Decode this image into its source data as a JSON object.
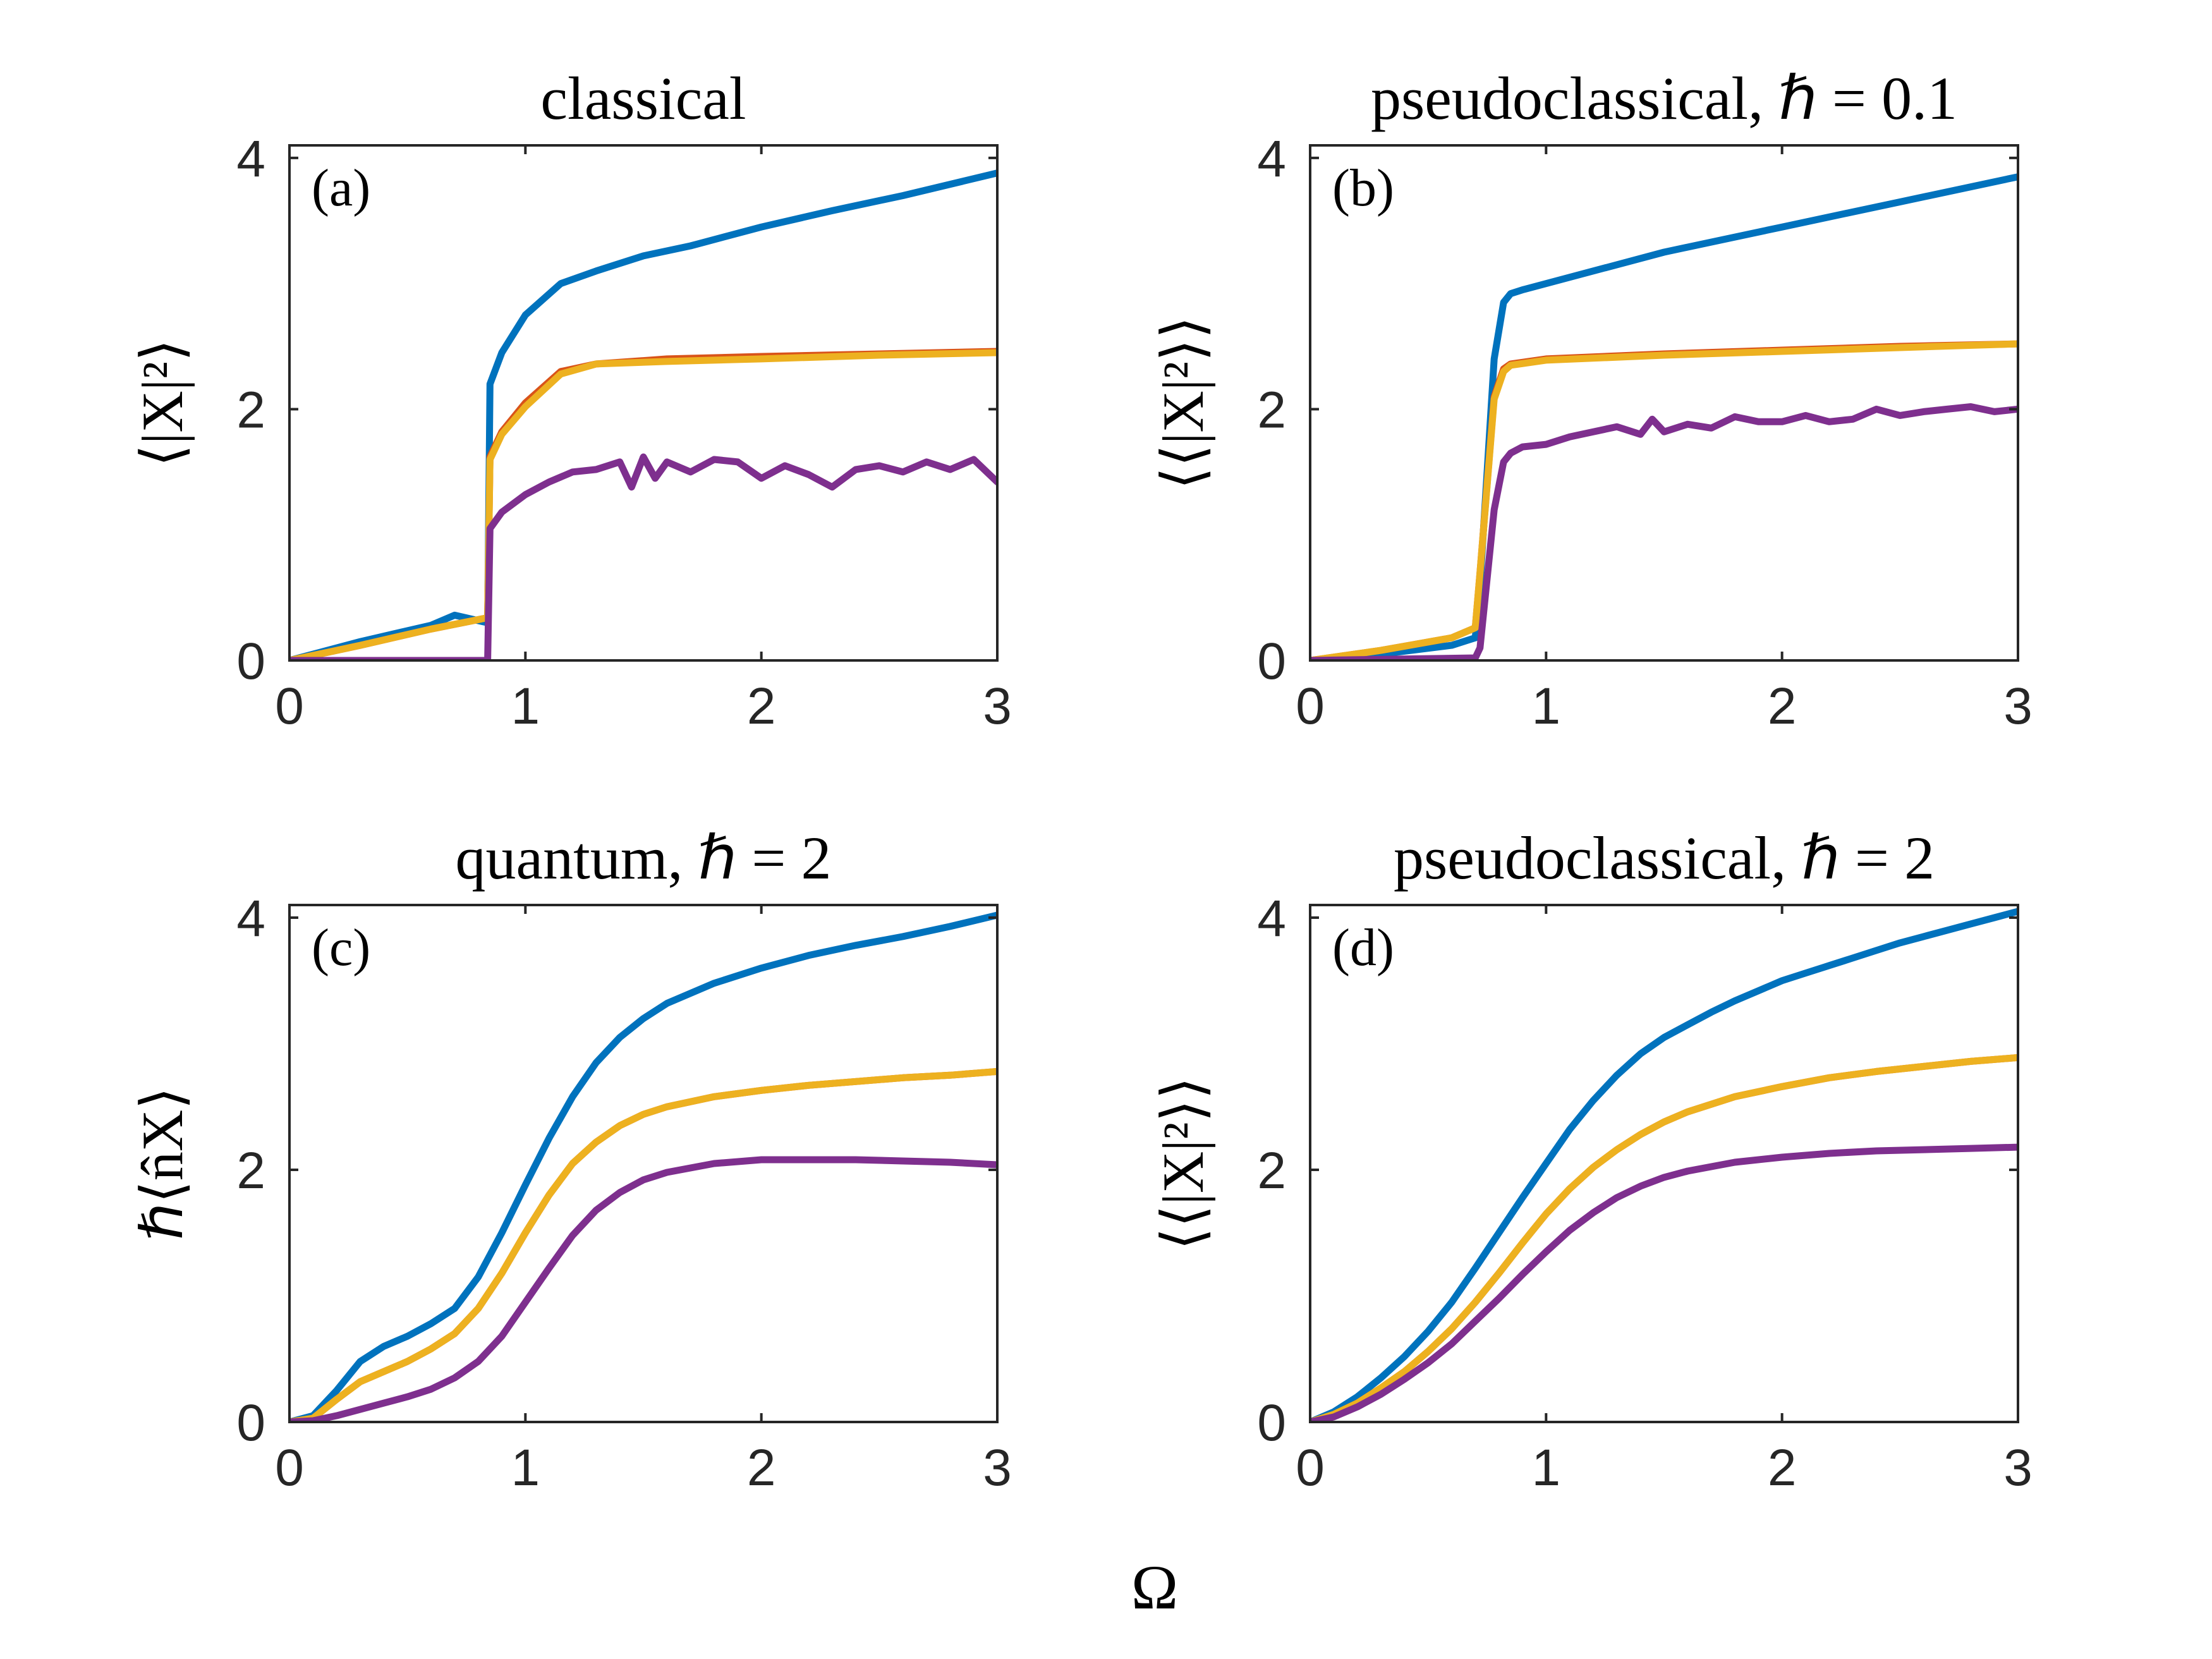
{
  "figure": {
    "shared_xlabel": "Ω"
  },
  "chart_data": [
    {
      "type": "line",
      "title": "classical",
      "panel_label": "(a)",
      "ylabel": "⟨|X|²⟩",
      "xlabel": "",
      "xlim": [
        0,
        3
      ],
      "ylim": [
        0,
        4.1
      ],
      "xticks": [
        "0",
        "1",
        "2",
        "3"
      ],
      "yticks": [
        "0",
        "2",
        "4"
      ],
      "series": [
        {
          "name": "blue",
          "color": "#0072BD",
          "x": [
            0,
            0.3,
            0.6,
            0.7,
            0.84,
            0.85,
            0.9,
            1.0,
            1.15,
            1.3,
            1.5,
            1.7,
            2.0,
            2.3,
            2.6,
            3.0
          ],
          "y": [
            0,
            0.15,
            0.28,
            0.36,
            0.3,
            2.2,
            2.45,
            2.75,
            3.0,
            3.1,
            3.22,
            3.3,
            3.45,
            3.58,
            3.7,
            3.88
          ]
        },
        {
          "name": "red",
          "color": "#D95319",
          "x": [
            0,
            0.3,
            0.6,
            0.84,
            0.85,
            0.9,
            1.0,
            1.15,
            1.3,
            1.6,
            2.0,
            2.5,
            3.0
          ],
          "y": [
            0,
            0.12,
            0.25,
            0.34,
            1.62,
            1.82,
            2.05,
            2.3,
            2.36,
            2.4,
            2.42,
            2.44,
            2.46
          ]
        },
        {
          "name": "yellow",
          "color": "#EDB120",
          "x": [
            0,
            0.3,
            0.6,
            0.84,
            0.85,
            0.9,
            1.0,
            1.15,
            1.3,
            1.6,
            2.0,
            2.5,
            3.0
          ],
          "y": [
            0,
            0.12,
            0.25,
            0.34,
            1.6,
            1.8,
            2.02,
            2.28,
            2.36,
            2.38,
            2.4,
            2.43,
            2.45
          ]
        },
        {
          "name": "purple",
          "color": "#7E2F8E",
          "x": [
            0,
            0.84,
            0.85,
            0.9,
            1.0,
            1.1,
            1.2,
            1.3,
            1.4,
            1.45,
            1.5,
            1.55,
            1.6,
            1.7,
            1.8,
            1.9,
            2.0,
            2.1,
            2.2,
            2.3,
            2.4,
            2.5,
            2.6,
            2.7,
            2.8,
            2.9,
            3.0
          ],
          "y": [
            0,
            0,
            1.05,
            1.18,
            1.32,
            1.42,
            1.5,
            1.52,
            1.58,
            1.38,
            1.62,
            1.45,
            1.58,
            1.5,
            1.6,
            1.58,
            1.45,
            1.55,
            1.48,
            1.38,
            1.52,
            1.55,
            1.5,
            1.58,
            1.52,
            1.6,
            1.42
          ]
        }
      ]
    },
    {
      "type": "line",
      "title": "pseudoclassical, ℏ = 0.1",
      "panel_label": "(b)",
      "ylabel": "⟨⟨|X|²⟩⟩",
      "xlabel": "",
      "xlim": [
        0,
        3
      ],
      "ylim": [
        0,
        4.1
      ],
      "xticks": [
        "0",
        "1",
        "2",
        "3"
      ],
      "yticks": [
        "0",
        "2",
        "4"
      ],
      "series": [
        {
          "name": "blue",
          "color": "#0072BD",
          "x": [
            0,
            0.3,
            0.6,
            0.7,
            0.72,
            0.78,
            0.82,
            0.85,
            0.9,
            1.0,
            1.5,
            2.0,
            2.5,
            3.0
          ],
          "y": [
            0,
            0.05,
            0.12,
            0.18,
            0.6,
            2.4,
            2.85,
            2.92,
            2.95,
            3.0,
            3.25,
            3.45,
            3.65,
            3.85
          ]
        },
        {
          "name": "red",
          "color": "#D95319",
          "x": [
            0,
            0.3,
            0.6,
            0.7,
            0.72,
            0.78,
            0.82,
            0.85,
            1.0,
            1.5,
            2.0,
            2.5,
            3.0
          ],
          "y": [
            0,
            0.08,
            0.18,
            0.26,
            0.7,
            2.1,
            2.32,
            2.36,
            2.4,
            2.44,
            2.47,
            2.5,
            2.52
          ]
        },
        {
          "name": "yellow",
          "color": "#EDB120",
          "x": [
            0,
            0.3,
            0.6,
            0.7,
            0.72,
            0.78,
            0.82,
            0.85,
            1.0,
            1.5,
            2.0,
            2.5,
            3.0
          ],
          "y": [
            0,
            0.08,
            0.18,
            0.26,
            0.7,
            2.08,
            2.3,
            2.35,
            2.39,
            2.43,
            2.46,
            2.49,
            2.52
          ]
        },
        {
          "name": "purple",
          "color": "#7E2F8E",
          "x": [
            0,
            0.7,
            0.72,
            0.78,
            0.82,
            0.85,
            0.9,
            1.0,
            1.1,
            1.2,
            1.3,
            1.4,
            1.45,
            1.5,
            1.6,
            1.7,
            1.8,
            1.9,
            2.0,
            2.1,
            2.2,
            2.3,
            2.4,
            2.5,
            2.6,
            2.7,
            2.8,
            2.9,
            3.0
          ],
          "y": [
            0,
            0.02,
            0.1,
            1.2,
            1.58,
            1.65,
            1.7,
            1.72,
            1.78,
            1.82,
            1.86,
            1.8,
            1.92,
            1.82,
            1.88,
            1.85,
            1.94,
            1.9,
            1.9,
            1.95,
            1.9,
            1.92,
            2.0,
            1.95,
            1.98,
            2.0,
            2.02,
            1.98,
            2.0
          ]
        }
      ]
    },
    {
      "type": "line",
      "title": "quantum, ℏ = 2",
      "panel_label": "(c)",
      "ylabel": "ℏ⟨n̂X⟩",
      "xlabel": "",
      "xlim": [
        0,
        3
      ],
      "ylim": [
        0,
        4.1
      ],
      "xticks": [
        "0",
        "1",
        "2",
        "3"
      ],
      "yticks": [
        "0",
        "2",
        "4"
      ],
      "series": [
        {
          "name": "blue",
          "color": "#0072BD",
          "x": [
            0,
            0.1,
            0.2,
            0.3,
            0.4,
            0.5,
            0.6,
            0.7,
            0.8,
            0.9,
            1.0,
            1.1,
            1.2,
            1.3,
            1.4,
            1.5,
            1.6,
            1.8,
            2.0,
            2.2,
            2.4,
            2.6,
            2.8,
            3.0
          ],
          "y": [
            0,
            0.05,
            0.25,
            0.48,
            0.6,
            0.68,
            0.78,
            0.9,
            1.15,
            1.5,
            1.88,
            2.25,
            2.58,
            2.85,
            3.05,
            3.2,
            3.32,
            3.48,
            3.6,
            3.7,
            3.78,
            3.85,
            3.93,
            4.02
          ]
        },
        {
          "name": "red",
          "color": "#D95319",
          "x": [
            0,
            0.1,
            0.2,
            0.3,
            0.4,
            0.5,
            0.6,
            0.7,
            0.8,
            0.9,
            1.0,
            1.1,
            1.2,
            1.3,
            1.4,
            1.5,
            1.6,
            1.8,
            2.0,
            2.2,
            2.4,
            2.6,
            2.8,
            3.0
          ],
          "y": [
            0,
            0.03,
            0.18,
            0.32,
            0.4,
            0.48,
            0.58,
            0.7,
            0.9,
            1.18,
            1.5,
            1.8,
            2.05,
            2.22,
            2.35,
            2.44,
            2.5,
            2.58,
            2.63,
            2.67,
            2.7,
            2.73,
            2.75,
            2.78
          ]
        },
        {
          "name": "yellow",
          "color": "#EDB120",
          "x": [
            0,
            0.1,
            0.2,
            0.3,
            0.4,
            0.5,
            0.6,
            0.7,
            0.8,
            0.9,
            1.0,
            1.1,
            1.2,
            1.3,
            1.4,
            1.5,
            1.6,
            1.8,
            2.0,
            2.2,
            2.4,
            2.6,
            2.8,
            3.0
          ],
          "y": [
            0,
            0.03,
            0.18,
            0.32,
            0.4,
            0.48,
            0.58,
            0.7,
            0.9,
            1.18,
            1.5,
            1.8,
            2.05,
            2.22,
            2.35,
            2.44,
            2.5,
            2.58,
            2.63,
            2.67,
            2.7,
            2.73,
            2.75,
            2.78
          ]
        },
        {
          "name": "purple",
          "color": "#7E2F8E",
          "x": [
            0,
            0.1,
            0.2,
            0.3,
            0.4,
            0.5,
            0.6,
            0.7,
            0.8,
            0.9,
            1.0,
            1.1,
            1.2,
            1.3,
            1.4,
            1.5,
            1.6,
            1.8,
            2.0,
            2.2,
            2.4,
            2.6,
            2.8,
            3.0
          ],
          "y": [
            0,
            0.01,
            0.05,
            0.1,
            0.15,
            0.2,
            0.26,
            0.35,
            0.48,
            0.68,
            0.95,
            1.22,
            1.48,
            1.68,
            1.82,
            1.92,
            1.98,
            2.05,
            2.08,
            2.08,
            2.08,
            2.07,
            2.06,
            2.04
          ]
        }
      ]
    },
    {
      "type": "line",
      "title": "pseudoclassical, ℏ = 2",
      "panel_label": "(d)",
      "ylabel": "⟨⟨|X|²⟩⟩",
      "xlabel": "",
      "xlim": [
        0,
        3
      ],
      "ylim": [
        0,
        4.1
      ],
      "xticks": [
        "0",
        "1",
        "2",
        "3"
      ],
      "yticks": [
        "0",
        "2",
        "4"
      ],
      "series": [
        {
          "name": "blue",
          "color": "#0072BD",
          "x": [
            0,
            0.1,
            0.2,
            0.3,
            0.4,
            0.5,
            0.6,
            0.7,
            0.8,
            0.9,
            1.0,
            1.1,
            1.2,
            1.3,
            1.4,
            1.5,
            1.6,
            1.7,
            1.8,
            1.9,
            2.0,
            2.1,
            2.2,
            2.3,
            2.4,
            2.5,
            2.6,
            2.7,
            2.8,
            2.9,
            3.0
          ],
          "y": [
            0,
            0.08,
            0.2,
            0.35,
            0.52,
            0.72,
            0.95,
            1.22,
            1.5,
            1.78,
            2.05,
            2.32,
            2.55,
            2.75,
            2.92,
            3.05,
            3.15,
            3.25,
            3.34,
            3.42,
            3.5,
            3.56,
            3.62,
            3.68,
            3.74,
            3.8,
            3.85,
            3.9,
            3.95,
            4.0,
            4.05
          ]
        },
        {
          "name": "red",
          "color": "#D95319",
          "x": [
            0,
            0.1,
            0.2,
            0.3,
            0.4,
            0.5,
            0.6,
            0.7,
            0.8,
            0.9,
            1.0,
            1.1,
            1.2,
            1.3,
            1.4,
            1.5,
            1.6,
            1.8,
            2.0,
            2.2,
            2.4,
            2.6,
            2.8,
            3.0
          ],
          "y": [
            0,
            0.06,
            0.15,
            0.27,
            0.4,
            0.56,
            0.74,
            0.95,
            1.18,
            1.42,
            1.65,
            1.85,
            2.02,
            2.16,
            2.28,
            2.38,
            2.46,
            2.58,
            2.66,
            2.73,
            2.78,
            2.82,
            2.86,
            2.89
          ]
        },
        {
          "name": "yellow",
          "color": "#EDB120",
          "x": [
            0,
            0.1,
            0.2,
            0.3,
            0.4,
            0.5,
            0.6,
            0.7,
            0.8,
            0.9,
            1.0,
            1.1,
            1.2,
            1.3,
            1.4,
            1.5,
            1.6,
            1.8,
            2.0,
            2.2,
            2.4,
            2.6,
            2.8,
            3.0
          ],
          "y": [
            0,
            0.06,
            0.15,
            0.27,
            0.4,
            0.56,
            0.74,
            0.95,
            1.18,
            1.42,
            1.65,
            1.85,
            2.02,
            2.16,
            2.28,
            2.38,
            2.46,
            2.58,
            2.66,
            2.73,
            2.78,
            2.82,
            2.86,
            2.89
          ]
        },
        {
          "name": "purple",
          "color": "#7E2F8E",
          "x": [
            0,
            0.1,
            0.2,
            0.3,
            0.4,
            0.5,
            0.6,
            0.7,
            0.8,
            0.9,
            1.0,
            1.1,
            1.2,
            1.3,
            1.4,
            1.5,
            1.6,
            1.8,
            2.0,
            2.2,
            2.4,
            2.6,
            2.8,
            3.0
          ],
          "y": [
            0,
            0.04,
            0.12,
            0.22,
            0.34,
            0.47,
            0.62,
            0.8,
            0.98,
            1.17,
            1.35,
            1.52,
            1.66,
            1.78,
            1.87,
            1.94,
            1.99,
            2.06,
            2.1,
            2.13,
            2.15,
            2.16,
            2.17,
            2.18
          ]
        }
      ]
    }
  ]
}
